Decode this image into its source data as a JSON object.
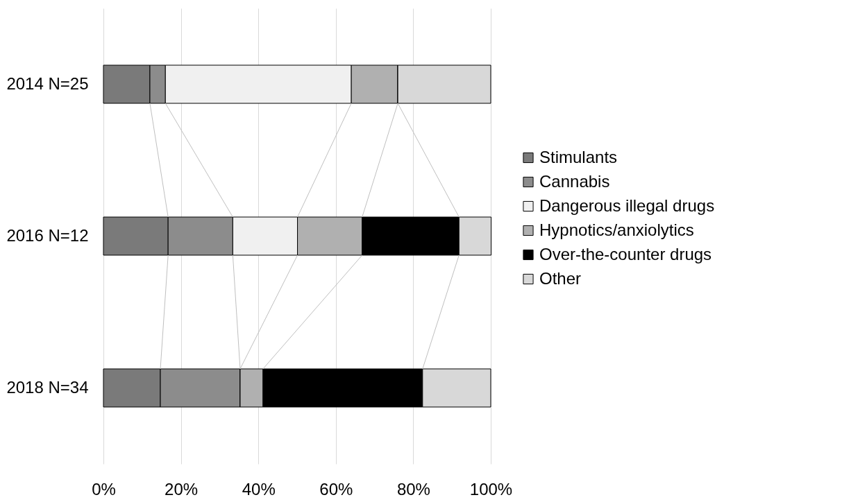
{
  "chart_data": {
    "type": "bar",
    "orientation": "horizontal",
    "stacked": true,
    "categories": [
      "2014 N=25",
      "2016 N=12",
      "2018 N=34"
    ],
    "series": [
      {
        "name": "Stimulants",
        "color": "#7a7a7a",
        "values": [
          12,
          16.7,
          14.7
        ]
      },
      {
        "name": "Cannabis",
        "color": "#8c8c8c",
        "values": [
          4,
          16.7,
          20.6
        ]
      },
      {
        "name": "Dangerous illegal drugs",
        "color": "#f0f0f0",
        "values": [
          48,
          16.7,
          0
        ]
      },
      {
        "name": "Hypnotics/anxiolytics",
        "color": "#b0b0b0",
        "values": [
          12,
          16.7,
          5.9
        ]
      },
      {
        "name": "Over-the-counter drugs",
        "color": "#000000",
        "values": [
          0,
          25,
          41.2
        ]
      },
      {
        "name": "Other",
        "color": "#d8d8d8",
        "values": [
          24,
          8.3,
          17.6
        ]
      }
    ],
    "xlim": [
      0,
      100
    ],
    "xticks": [
      {
        "value": 0,
        "label": "0%"
      },
      {
        "value": 20,
        "label": "20%"
      },
      {
        "value": 40,
        "label": "40%"
      },
      {
        "value": 60,
        "label": "60%"
      },
      {
        "value": 80,
        "label": "80%"
      },
      {
        "value": 100,
        "label": "100%"
      }
    ],
    "grid": "x",
    "legend": "right"
  }
}
